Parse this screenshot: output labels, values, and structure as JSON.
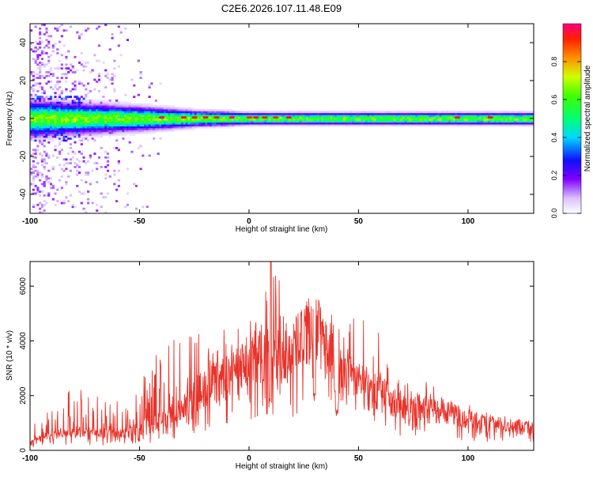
{
  "chart_data": [
    {
      "type": "heatmap",
      "title": "C2E6.2026.107.11.48.E09",
      "xlabel": "Height of straight line (km)",
      "ylabel": "Frequency (Hz)",
      "xlim": [
        -100,
        130
      ],
      "ylim": [
        -50,
        50
      ],
      "xticks": [
        -100,
        -50,
        0,
        50,
        100
      ],
      "yticks": [
        -40,
        -20,
        0,
        20,
        40
      ],
      "colorbar": {
        "label": "Normalized spectral amplitude",
        "range": [
          0,
          1
        ],
        "ticks": [
          0.0,
          0.2,
          0.4,
          0.6,
          0.8
        ]
      },
      "band_center_hz": 0,
      "band_halfwidth_hz": [
        {
          "x": -100,
          "w": 9
        },
        {
          "x": -50,
          "w": 6
        },
        {
          "x": -25,
          "w": 4
        },
        {
          "x": 0,
          "w": 3
        },
        {
          "x": 130,
          "w": 3
        }
      ],
      "hotspots_x_km": [
        -40,
        -30,
        -25,
        -20,
        -15,
        -8,
        0,
        3,
        7,
        12,
        18,
        95,
        110
      ]
    },
    {
      "type": "line",
      "title": "",
      "xlabel": "Height of straight line (km)",
      "ylabel": "SNR (10 * v/v)",
      "xlim": [
        -100,
        130
      ],
      "ylim": [
        0,
        6900
      ],
      "xticks": [
        -100,
        -50,
        0,
        50,
        100
      ],
      "yticks": [
        0,
        2000,
        4000,
        6000
      ],
      "color": "#e8332a",
      "envelope": [
        {
          "x": -100,
          "base": 300,
          "peak": 800
        },
        {
          "x": -90,
          "base": 600,
          "peak": 1800
        },
        {
          "x": -80,
          "base": 700,
          "peak": 2400
        },
        {
          "x": -70,
          "base": 650,
          "peak": 2000
        },
        {
          "x": -60,
          "base": 600,
          "peak": 1800
        },
        {
          "x": -50,
          "base": 800,
          "peak": 2500
        },
        {
          "x": -40,
          "base": 1100,
          "peak": 3800
        },
        {
          "x": -30,
          "base": 1600,
          "peak": 4300
        },
        {
          "x": -20,
          "base": 2400,
          "peak": 4300
        },
        {
          "x": -10,
          "base": 2800,
          "peak": 4500
        },
        {
          "x": 0,
          "base": 3300,
          "peak": 4700
        },
        {
          "x": 5,
          "base": 3600,
          "peak": 5000
        },
        {
          "x": 10,
          "base": 3300,
          "peak": 6900
        },
        {
          "x": 20,
          "base": 4000,
          "peak": 5500
        },
        {
          "x": 30,
          "base": 4800,
          "peak": 5700
        },
        {
          "x": 35,
          "base": 3800,
          "peak": 5200
        },
        {
          "x": 40,
          "base": 2500,
          "peak": 4800
        },
        {
          "x": 45,
          "base": 3000,
          "peak": 5200
        },
        {
          "x": 50,
          "base": 2600,
          "peak": 5000
        },
        {
          "x": 55,
          "base": 2200,
          "peak": 4600
        },
        {
          "x": 60,
          "base": 2300,
          "peak": 4300
        },
        {
          "x": 65,
          "base": 1800,
          "peak": 3200
        },
        {
          "x": 70,
          "base": 1700,
          "peak": 2400
        },
        {
          "x": 80,
          "base": 1600,
          "peak": 2600
        },
        {
          "x": 90,
          "base": 1400,
          "peak": 2000
        },
        {
          "x": 100,
          "base": 1200,
          "peak": 1700
        },
        {
          "x": 110,
          "base": 1000,
          "peak": 1400
        },
        {
          "x": 120,
          "base": 900,
          "peak": 1200
        },
        {
          "x": 130,
          "base": 800,
          "peak": 1100
        }
      ],
      "dips": [
        {
          "x": 10,
          "value": 1700
        },
        {
          "x": 30,
          "value": 1800
        },
        {
          "x": 40,
          "value": 1200
        },
        {
          "x": 58,
          "value": 1500
        },
        {
          "x": 62,
          "value": 1600
        }
      ]
    }
  ]
}
